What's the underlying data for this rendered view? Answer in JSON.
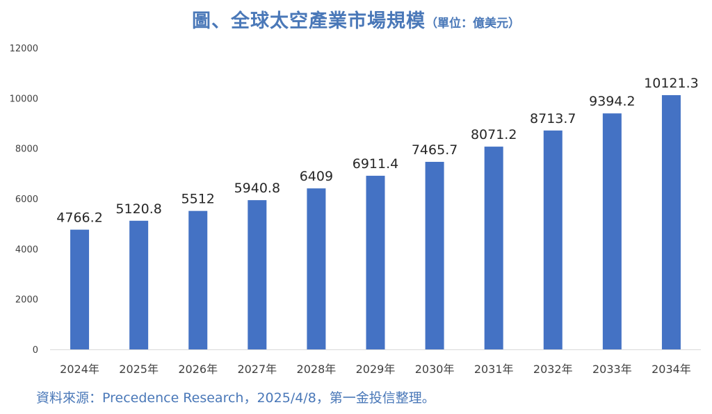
{
  "header": {
    "title": "圖、全球太空產業市場規模",
    "subtitle": "（單位：億美元）"
  },
  "footer": {
    "source": "資料來源：Precedence Research，2025/4/8，第一金投信整理。"
  },
  "colors": {
    "bar": "#4472c4",
    "title": "#4a78b8",
    "axis_text": "#404040",
    "label_text": "#262626"
  },
  "chart_data": {
    "type": "bar",
    "categories": [
      "2024年",
      "2025年",
      "2026年",
      "2027年",
      "2028年",
      "2029年",
      "2030年",
      "2031年",
      "2032年",
      "2033年",
      "2034年"
    ],
    "values": [
      4766.2,
      5120.8,
      5512,
      5940.8,
      6409,
      6911.4,
      7465.7,
      8071.2,
      8713.7,
      9394.2,
      10121.3
    ],
    "value_labels": [
      "4766.2",
      "5120.8",
      "5512",
      "5940.8",
      "6409",
      "6911.4",
      "7465.7",
      "8071.2",
      "8713.7",
      "9394.2",
      "10121.3"
    ],
    "yticks": [
      "0",
      "2000",
      "4000",
      "6000",
      "8000",
      "10000",
      "12000"
    ],
    "ylim": [
      0,
      12000
    ],
    "grid": false,
    "legend": "none"
  }
}
